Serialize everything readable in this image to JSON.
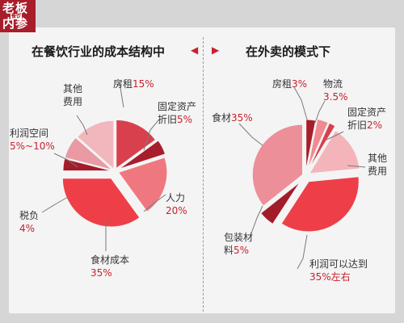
{
  "badge": {
    "line1": "老板",
    "tag": "餐饮",
    "line2": "内参"
  },
  "colors": {
    "accent": "#c8202f",
    "badge": "#a81d2b"
  },
  "chart_data": [
    {
      "type": "pie",
      "title": "在餐饮行业的成本结构中",
      "slices": [
        {
          "label": "房租",
          "value_text": "15%",
          "value": 15,
          "color": "#d9404e"
        },
        {
          "label": "固定资产折旧",
          "value_text": "5%",
          "value": 5,
          "color": "#a81d2b"
        },
        {
          "label": "人力",
          "value_text": "20%",
          "value": 20,
          "color": "#ef7880"
        },
        {
          "label": "食材成本",
          "value_text": "35%",
          "value": 35,
          "color": "#ee3f48"
        },
        {
          "label": "税负",
          "value_text": "4%",
          "value": 4,
          "color": "#a31c2a"
        },
        {
          "label": "利润空间",
          "value_text": "5%~10%",
          "value": 7.5,
          "color": "#e99aa3"
        },
        {
          "label": "其他费用",
          "value_text": "",
          "value": 13.5,
          "color": "#f2b7bc"
        }
      ]
    },
    {
      "type": "pie",
      "title": "在外卖的模式下",
      "slices": [
        {
          "label": "房租",
          "value_text": "3%",
          "value": 3,
          "color": "#a81d2b"
        },
        {
          "label": "物流",
          "value_text": "3.5%",
          "value": 3.5,
          "color": "#f08a90"
        },
        {
          "label": "固定资产折旧",
          "value_text": "2%",
          "value": 2,
          "color": "#d9404e"
        },
        {
          "label": "其他费用",
          "value_text": "",
          "value": 14.5,
          "color": "#f4b5ba"
        },
        {
          "label": "利润可以达到",
          "value_text": "35%左右",
          "value": 35,
          "color": "#ee3f48"
        },
        {
          "label": "包装材料",
          "value_text": "5%",
          "value": 5,
          "color": "#a31c2a"
        },
        {
          "label": "食材",
          "value_text": "35%",
          "value": 35,
          "color": "#ec8f98"
        }
      ]
    }
  ]
}
